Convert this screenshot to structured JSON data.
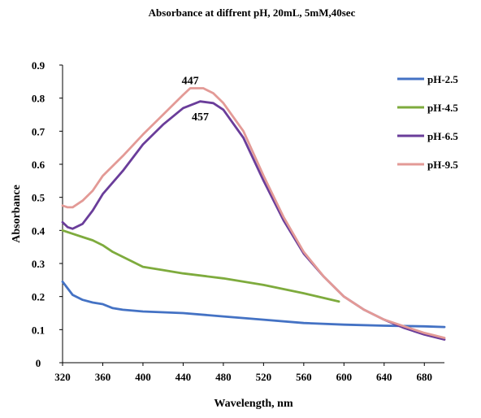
{
  "chart_data": {
    "type": "line",
    "title": "Absorbance at diffrent pH, 20mL, 5mM,40sec",
    "xlabel": "Wavelength, nm",
    "ylabel": "Absorbance",
    "xlim": [
      320,
      700
    ],
    "ylim": [
      0,
      0.9
    ],
    "x_ticks": [
      "320",
      "360",
      "400",
      "440",
      "480",
      "520",
      "560",
      "600",
      "640",
      "680"
    ],
    "y_ticks": [
      "0",
      "0.1",
      "0.2",
      "0.3",
      "0.4",
      "0.5",
      "0.6",
      "0.7",
      "0.8",
      "0.9"
    ],
    "grid": false,
    "legend_position": "right",
    "annotations": [
      {
        "text": "447",
        "x": 447,
        "y": 0.855
      },
      {
        "text": "457",
        "x": 457,
        "y": 0.745
      }
    ],
    "series": [
      {
        "name": "pH-2.5",
        "color": "#4472C4",
        "points": [
          [
            320,
            0.245
          ],
          [
            325,
            0.225
          ],
          [
            330,
            0.205
          ],
          [
            340,
            0.19
          ],
          [
            350,
            0.182
          ],
          [
            360,
            0.177
          ],
          [
            370,
            0.165
          ],
          [
            380,
            0.16
          ],
          [
            400,
            0.155
          ],
          [
            440,
            0.15
          ],
          [
            480,
            0.14
          ],
          [
            520,
            0.13
          ],
          [
            560,
            0.12
          ],
          [
            600,
            0.115
          ],
          [
            640,
            0.112
          ],
          [
            680,
            0.11
          ],
          [
            700,
            0.108
          ]
        ]
      },
      {
        "name": "pH-4.5",
        "color": "#7EAB3D",
        "points": [
          [
            320,
            0.4
          ],
          [
            330,
            0.39
          ],
          [
            340,
            0.38
          ],
          [
            350,
            0.37
          ],
          [
            360,
            0.355
          ],
          [
            370,
            0.335
          ],
          [
            380,
            0.32
          ],
          [
            390,
            0.305
          ],
          [
            400,
            0.29
          ],
          [
            420,
            0.28
          ],
          [
            440,
            0.27
          ],
          [
            480,
            0.255
          ],
          [
            520,
            0.235
          ],
          [
            560,
            0.21
          ],
          [
            595,
            0.185
          ]
        ]
      },
      {
        "name": "pH-6.5",
        "color": "#6A3D9A",
        "points": [
          [
            320,
            0.425
          ],
          [
            325,
            0.41
          ],
          [
            330,
            0.405
          ],
          [
            340,
            0.42
          ],
          [
            350,
            0.46
          ],
          [
            360,
            0.51
          ],
          [
            380,
            0.58
          ],
          [
            400,
            0.66
          ],
          [
            420,
            0.72
          ],
          [
            440,
            0.77
          ],
          [
            457,
            0.79
          ],
          [
            470,
            0.785
          ],
          [
            480,
            0.765
          ],
          [
            500,
            0.68
          ],
          [
            520,
            0.55
          ],
          [
            540,
            0.43
          ],
          [
            560,
            0.33
          ],
          [
            580,
            0.26
          ],
          [
            600,
            0.2
          ],
          [
            620,
            0.16
          ],
          [
            640,
            0.13
          ],
          [
            660,
            0.105
          ],
          [
            680,
            0.085
          ],
          [
            700,
            0.07
          ]
        ]
      },
      {
        "name": "pH-9.5",
        "color": "#E39A96",
        "points": [
          [
            320,
            0.475
          ],
          [
            325,
            0.47
          ],
          [
            330,
            0.47
          ],
          [
            340,
            0.49
          ],
          [
            350,
            0.52
          ],
          [
            360,
            0.565
          ],
          [
            380,
            0.625
          ],
          [
            400,
            0.69
          ],
          [
            420,
            0.75
          ],
          [
            440,
            0.81
          ],
          [
            447,
            0.83
          ],
          [
            460,
            0.83
          ],
          [
            470,
            0.815
          ],
          [
            480,
            0.785
          ],
          [
            500,
            0.7
          ],
          [
            520,
            0.565
          ],
          [
            540,
            0.44
          ],
          [
            560,
            0.335
          ],
          [
            580,
            0.26
          ],
          [
            600,
            0.2
          ],
          [
            620,
            0.16
          ],
          [
            640,
            0.13
          ],
          [
            660,
            0.11
          ],
          [
            680,
            0.09
          ],
          [
            700,
            0.075
          ]
        ]
      }
    ]
  }
}
